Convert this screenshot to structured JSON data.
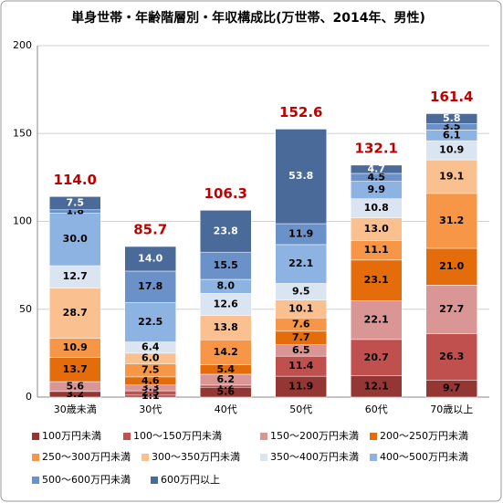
{
  "chart_data": {
    "type": "stacked_bar",
    "title": "単身世帯・年齢階層別・年収構成比(万世帯、2014年、男性)",
    "categories": [
      "30歳未満",
      "30代",
      "40代",
      "50代",
      "60代",
      "70歳以上"
    ],
    "series": [
      {
        "name": "100万円未満",
        "color": "#943634",
        "label_color": "#000000",
        "values": [
          3.2,
          1.1,
          5.6,
          11.9,
          12.1,
          9.7
        ],
        "value_labels": [
          "3.2",
          "1.1",
          "5.6",
          "11.9",
          "12.1",
          "9.7"
        ]
      },
      {
        "name": "100〜150万円未満",
        "color": "#c0504d",
        "label_color": "#000000",
        "values": [
          0,
          2.5,
          1.2,
          11.4,
          20.7,
          26.3
        ],
        "value_labels": [
          null,
          "2.5",
          "1.2",
          "11.4",
          "20.7",
          "26.3"
        ]
      },
      {
        "name": "150〜200万円未満",
        "color": "#d99694",
        "label_color": "#000000",
        "values": [
          5.6,
          3.3,
          6.2,
          6.5,
          22.1,
          27.7
        ],
        "value_labels": [
          "5.6",
          "3.3",
          "6.2",
          "6.5",
          "22.1",
          "27.7"
        ]
      },
      {
        "name": "200〜250万円未満",
        "color": "#e46c0a",
        "label_color": "#000000",
        "values": [
          13.7,
          4.6,
          5.4,
          7.7,
          23.1,
          21.0
        ],
        "value_labels": [
          "13.7",
          "4.6",
          "5.4",
          "7.7",
          "23.1",
          "21.0"
        ]
      },
      {
        "name": "250〜300万円未満",
        "color": "#f79646",
        "label_color": "#000000",
        "values": [
          10.9,
          7.5,
          14.2,
          7.6,
          11.1,
          31.2
        ],
        "value_labels": [
          "10.9",
          "7.5",
          "14.2",
          "7.6",
          "11.1",
          "31.2"
        ]
      },
      {
        "name": "300〜350万円未満",
        "color": "#fac090",
        "label_color": "#000000",
        "values": [
          28.7,
          6.0,
          13.8,
          10.1,
          13.0,
          19.1
        ],
        "value_labels": [
          "28.7",
          "6.0",
          "13.8",
          "10.1",
          "13.0",
          "19.1"
        ]
      },
      {
        "name": "350〜400万円未満",
        "color": "#dbe5f1",
        "label_color": "#000000",
        "values": [
          12.7,
          6.4,
          12.6,
          9.5,
          10.8,
          10.9
        ],
        "value_labels": [
          "12.7",
          "6.4",
          "12.6",
          "9.5",
          "10.8",
          "10.9"
        ]
      },
      {
        "name": "400〜500万円未満",
        "color": "#8db3e2",
        "label_color": "#000000",
        "values": [
          30.0,
          22.5,
          8.0,
          22.1,
          9.9,
          6.1
        ],
        "value_labels": [
          "30.0",
          "22.5",
          "8.0",
          "22.1",
          "9.9",
          "6.1"
        ]
      },
      {
        "name": "500〜600万円未満",
        "color": "#6a92c8",
        "label_color": "#000000",
        "values": [
          1.8,
          17.8,
          15.5,
          11.9,
          4.5,
          3.5
        ],
        "value_labels": [
          "1.8",
          "17.8",
          "15.5",
          "11.9",
          "4.5",
          "3.5"
        ]
      },
      {
        "name": "600万円以上",
        "color": "#4a6a9a",
        "label_color": "#ffffff",
        "values": [
          7.5,
          14.0,
          23.8,
          53.8,
          4.7,
          5.8
        ],
        "value_labels": [
          "7.5",
          "14.0",
          "23.8",
          "53.8",
          "4.7",
          "5.8"
        ]
      }
    ],
    "totals": [
      114.0,
      85.7,
      106.3,
      152.6,
      132.1,
      161.4
    ],
    "totals_labels": [
      "114.0",
      "85.7",
      "106.3",
      "152.6",
      "132.1",
      "161.4"
    ],
    "totals_color": "#c00000",
    "ylim": [
      0,
      200
    ],
    "yticks": [
      0,
      50,
      100,
      150,
      200
    ],
    "grid": true
  }
}
